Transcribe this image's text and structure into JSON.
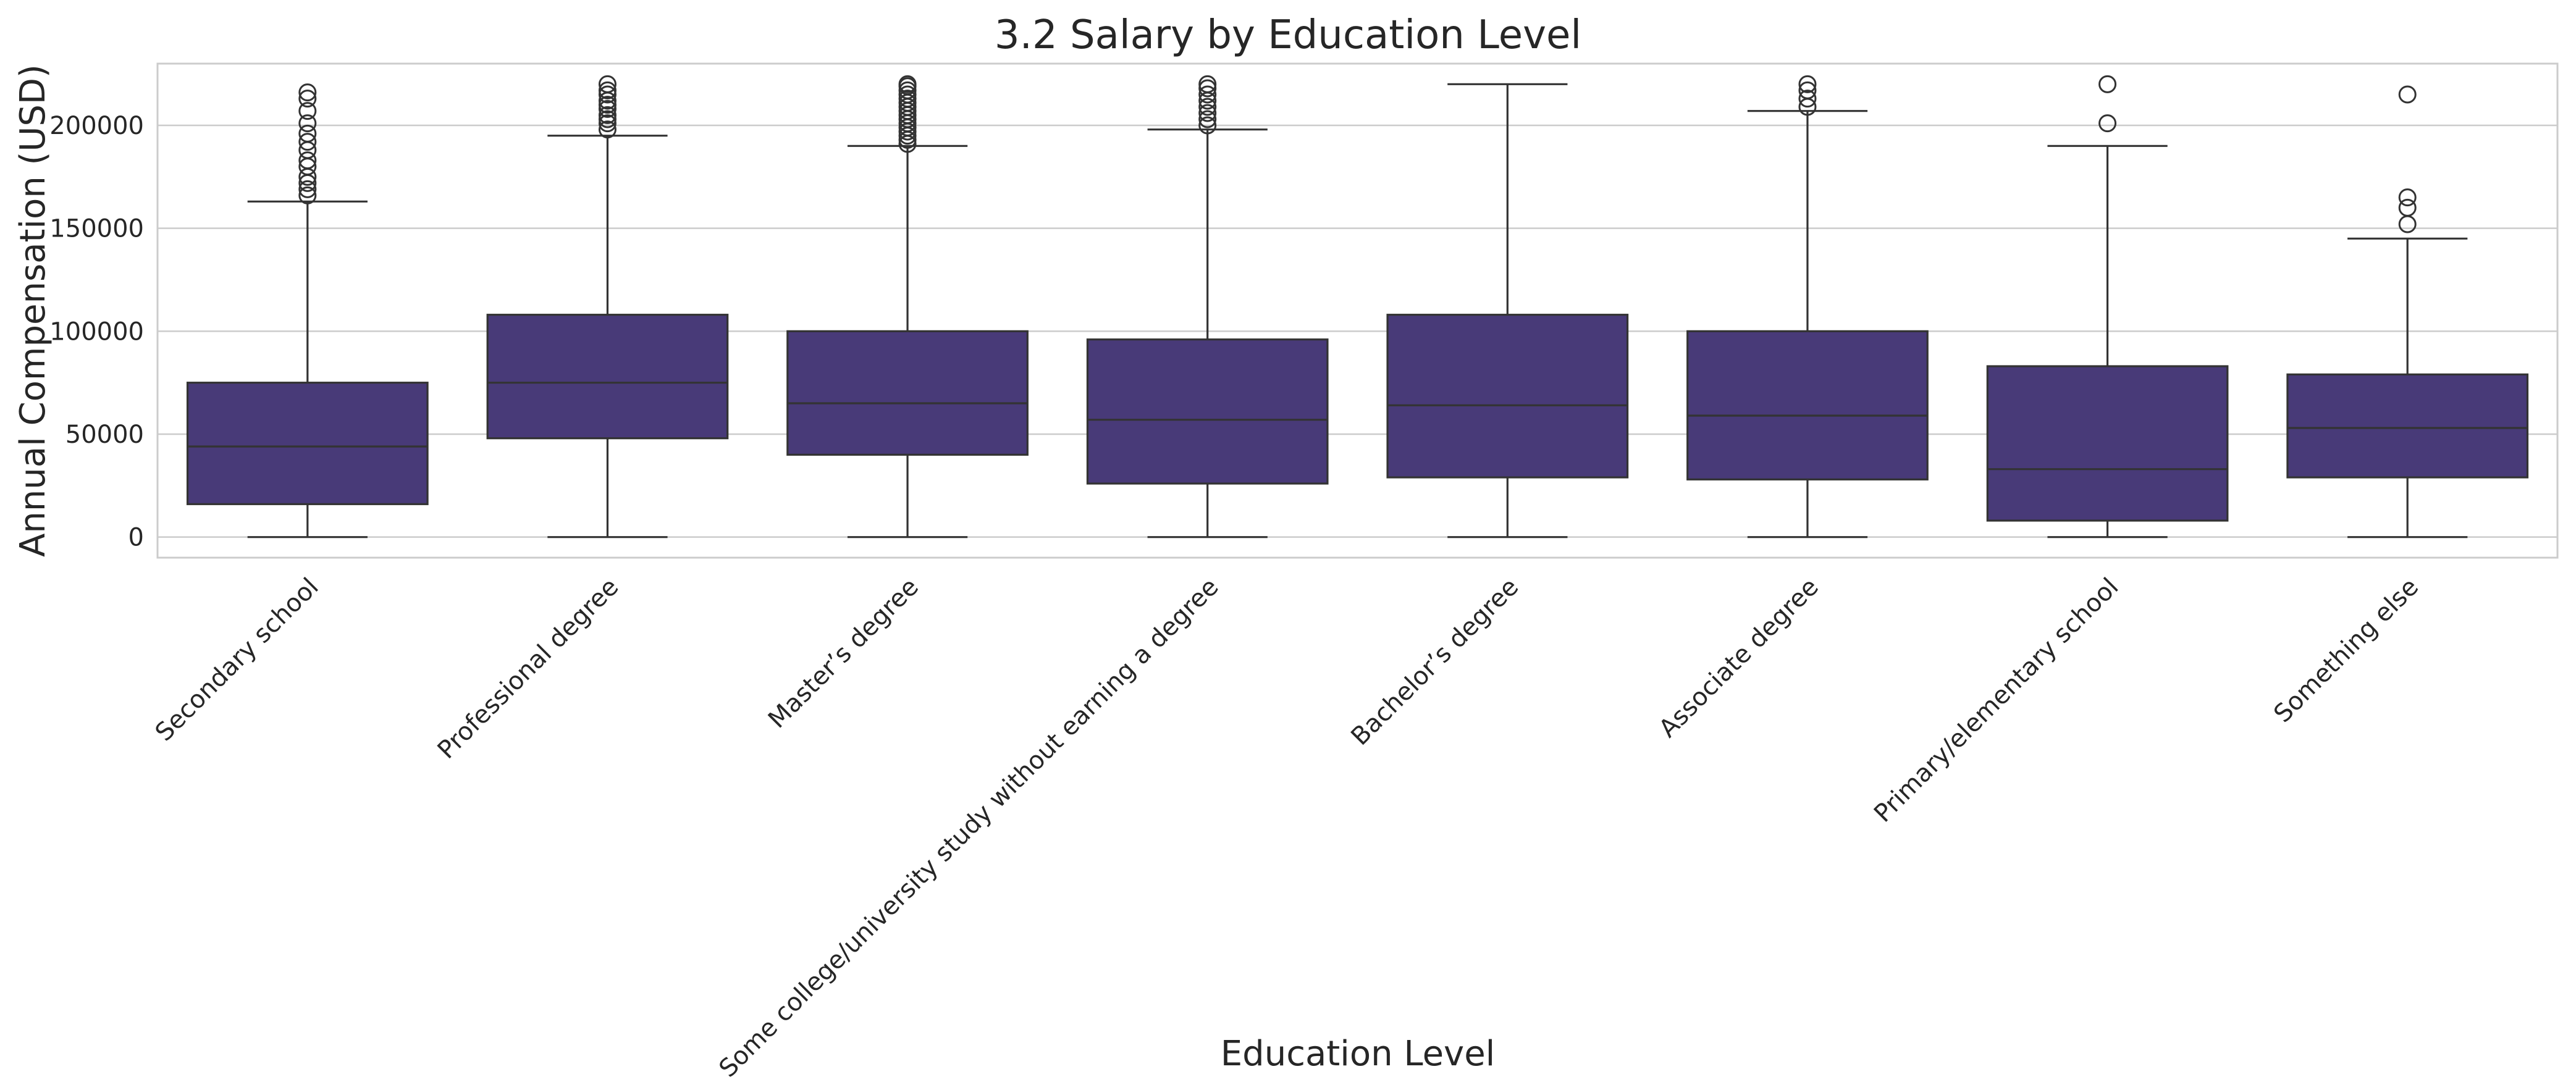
{
  "chart_data": {
    "type": "box",
    "title": "3.2 Salary by Education Level",
    "xlabel": "Education Level",
    "ylabel": "Annual Compensation (USD)",
    "ylim": [
      -10000,
      230000
    ],
    "yticks": [
      0,
      50000,
      100000,
      150000,
      200000
    ],
    "grid": true,
    "colors": {
      "box": "#483a78",
      "line": "#333333",
      "grid": "#cccccc",
      "frame": "#cccccc",
      "text": "#262626"
    },
    "categories": [
      "Secondary school",
      "Professional degree",
      "Master’s degree",
      "Some college/university study without earning a degree",
      "Bachelor’s degree",
      "Associate degree",
      "Primary/elementary school",
      "Something else"
    ],
    "boxes": [
      {
        "min": 0,
        "q1": 16000,
        "median": 44000,
        "q3": 75000,
        "max": 163000,
        "outliers": [
          166000,
          169000,
          172000,
          175000,
          180000,
          183000,
          188000,
          192000,
          196000,
          201000,
          207000,
          213000,
          216000
        ]
      },
      {
        "min": 0,
        "q1": 48000,
        "median": 75000,
        "q3": 108000,
        "max": 195000,
        "outliers": [
          198000,
          201000,
          203000,
          205000,
          208000,
          210000,
          212000,
          215000,
          217000,
          220000
        ]
      },
      {
        "min": 0,
        "q1": 40000,
        "median": 65000,
        "q3": 100000,
        "max": 190000,
        "outliers": [
          191000,
          193000,
          195000,
          197000,
          199000,
          201000,
          203000,
          205000,
          207000,
          209000,
          211000,
          213000,
          215000,
          217000,
          219000,
          220000
        ]
      },
      {
        "min": 0,
        "q1": 26000,
        "median": 57000,
        "q3": 96000,
        "max": 198000,
        "outliers": [
          200000,
          203000,
          206000,
          209000,
          212000,
          215000,
          218000,
          220000
        ]
      },
      {
        "min": 0,
        "q1": 29000,
        "median": 64000,
        "q3": 108000,
        "max": 220000,
        "outliers": []
      },
      {
        "min": 0,
        "q1": 28000,
        "median": 59000,
        "q3": 100000,
        "max": 207000,
        "outliers": [
          209000,
          213000,
          217000,
          220000
        ]
      },
      {
        "min": 0,
        "q1": 8000,
        "median": 33000,
        "q3": 83000,
        "max": 190000,
        "outliers": [
          201000,
          220000
        ]
      },
      {
        "min": 0,
        "q1": 29000,
        "median": 53000,
        "q3": 79000,
        "max": 145000,
        "outliers": [
          152000,
          160000,
          165000,
          215000
        ]
      }
    ]
  }
}
